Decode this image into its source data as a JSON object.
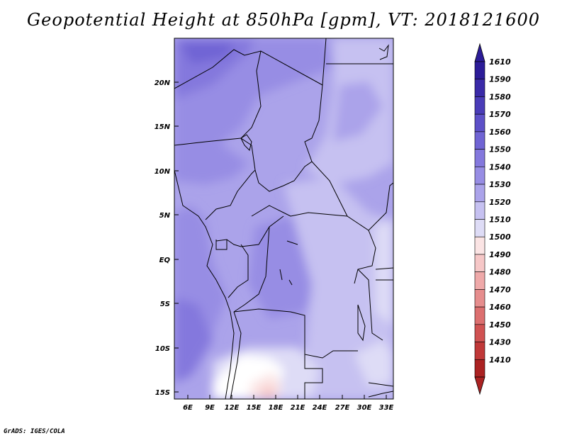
{
  "title": "Geopotential Height at 850hPa [gpm], VT: 2018121600",
  "footer": "GrADS: IGES/COLA",
  "map": {
    "lat_ticks": [
      "20N",
      "15N",
      "10N",
      "5N",
      "EQ",
      "5S",
      "10S",
      "15S"
    ],
    "lon_ticks": [
      "6E",
      "9E",
      "12E",
      "15E",
      "18E",
      "21E",
      "24E",
      "27E",
      "30E",
      "33E"
    ]
  },
  "colorbar": {
    "levels": [
      "1610",
      "1590",
      "1580",
      "1570",
      "1560",
      "1550",
      "1540",
      "1530",
      "1520",
      "1510",
      "1500",
      "1490",
      "1480",
      "1470",
      "1460",
      "1450",
      "1430",
      "1410"
    ],
    "colors": [
      "#2c1c98",
      "#3a2aa8",
      "#4a3cb8",
      "#5d50c8",
      "#7064d4",
      "#8478dd",
      "#978de4",
      "#aba3ea",
      "#c6c1f1",
      "#dedcf6",
      "#fbe4e4",
      "#f6c7c7",
      "#efa9a9",
      "#e68d8d",
      "#dc6f6f",
      "#d05252",
      "#c03838",
      "#ab2222"
    ]
  }
}
